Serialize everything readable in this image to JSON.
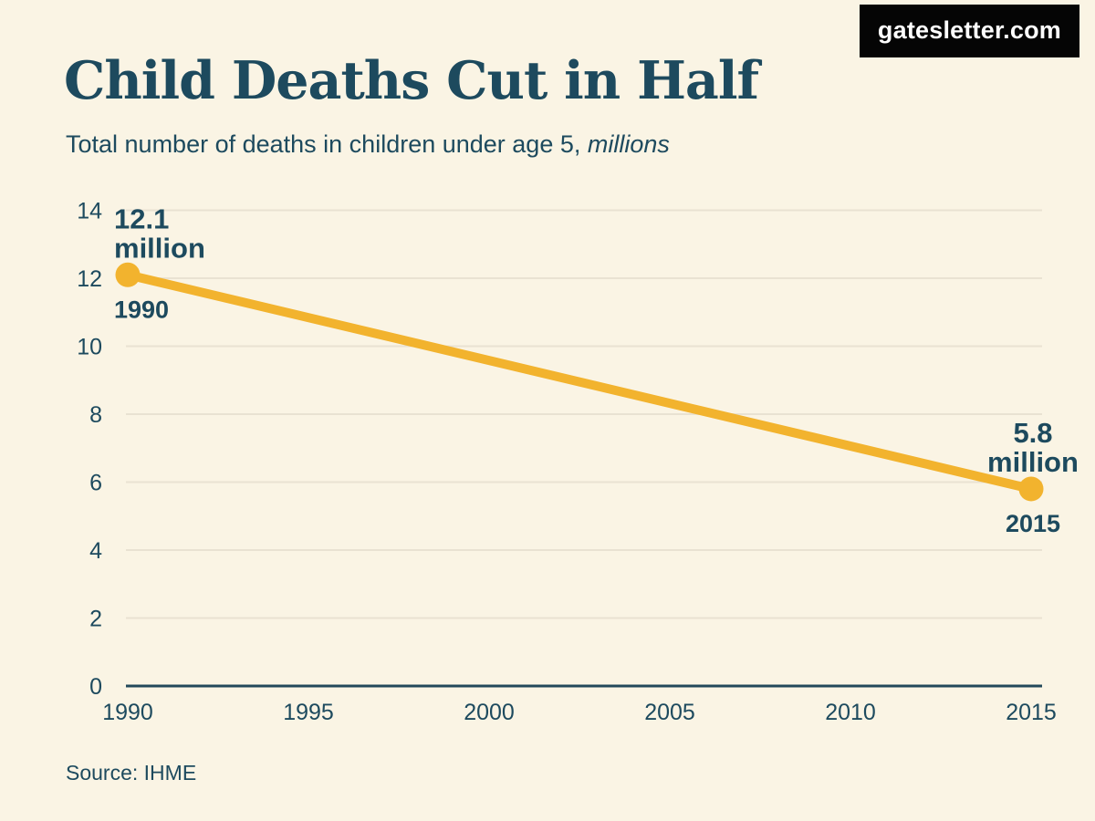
{
  "brand": {
    "label": "gatesletter.com"
  },
  "title": "Child Deaths Cut in Half",
  "subtitle": {
    "text": "Total number of deaths in children under age 5, ",
    "emphasis": "millions"
  },
  "source": "Source: IHME",
  "colors": {
    "background": "#faf4e4",
    "ink": "#1d4a5e",
    "line": "#f2b32e",
    "grid": "#e9e2d2",
    "axis": "#23485a",
    "brand_bg": "#050505",
    "brand_text": "#ffffff"
  },
  "chart_data": {
    "type": "line",
    "title": "Child Deaths Cut in Half",
    "subtitle": "Total number of deaths in children under age 5, millions",
    "x": [
      1990,
      2015
    ],
    "series": [
      {
        "name": "Deaths in children under age 5 (millions)",
        "values": [
          12.1,
          5.8
        ]
      }
    ],
    "x_ticks": [
      1990,
      1995,
      2000,
      2005,
      2010,
      2015
    ],
    "y_ticks": [
      0,
      2,
      4,
      6,
      8,
      10,
      12,
      14
    ],
    "xlim": [
      1990,
      2015
    ],
    "ylim": [
      0,
      14
    ],
    "grid": "horizontal",
    "legend": "none",
    "line_color": "#f2b32e",
    "marker": "circle",
    "annotations": [
      {
        "x": 1990,
        "value_label": "12.1",
        "unit_label": "million",
        "year_label": "1990",
        "align": "left"
      },
      {
        "x": 2015,
        "value_label": "5.8",
        "unit_label": "million",
        "year_label": "2015",
        "align": "center"
      }
    ],
    "source": "Source: IHME"
  }
}
